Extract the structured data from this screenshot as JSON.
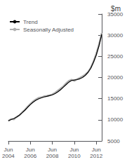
{
  "chart_data": {
    "type": "line",
    "title": "$m",
    "categories": [
      "Jun\n2004",
      null,
      null,
      null,
      null,
      null,
      null,
      null,
      "Jun\n2006",
      null,
      null,
      null,
      null,
      null,
      null,
      null,
      "Jun\n2008",
      null,
      null,
      null,
      null,
      null,
      null,
      null,
      "Jun\n2010",
      null,
      null,
      null,
      null,
      null,
      null,
      null,
      "Jun\n2012",
      null,
      null
    ],
    "series": [
      {
        "name": "Trend",
        "color": "#000000",
        "values": [
          9800,
          10050,
          10300,
          10650,
          11100,
          11650,
          12250,
          12950,
          13600,
          14150,
          14600,
          14950,
          15200,
          15400,
          15550,
          15700,
          15900,
          16200,
          16600,
          17100,
          17700,
          18300,
          18900,
          19300,
          19400,
          19500,
          19700,
          20000,
          20500,
          21200,
          22200,
          23600,
          25300,
          27500,
          30200
        ]
      },
      {
        "name": "Seasonally Adjusted",
        "color": "#b0b0b0",
        "values": [
          9700,
          10200,
          10100,
          10700,
          11050,
          11750,
          12350,
          13100,
          13750,
          14350,
          14800,
          15200,
          15300,
          15550,
          15650,
          15800,
          16000,
          16400,
          16900,
          17400,
          17900,
          18600,
          19200,
          19500,
          19200,
          19600,
          19900,
          20300,
          20700,
          21300,
          22300,
          23800,
          25600,
          27800,
          30500
        ]
      }
    ],
    "ylim": [
      5000,
      35000
    ],
    "yticks": [
      5000,
      10000,
      15000,
      20000,
      25000,
      30000,
      35000
    ],
    "grid": false,
    "legend": "upper left"
  }
}
